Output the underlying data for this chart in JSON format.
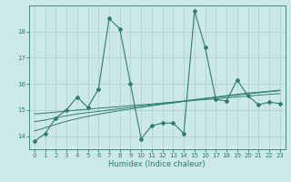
{
  "xlabel": "Humidex (Indice chaleur)",
  "x": [
    0,
    1,
    2,
    3,
    4,
    5,
    6,
    7,
    8,
    9,
    10,
    11,
    12,
    13,
    14,
    15,
    16,
    17,
    18,
    19,
    20,
    21,
    22,
    23
  ],
  "y_main": [
    13.8,
    14.1,
    14.7,
    15.0,
    15.5,
    15.1,
    15.8,
    18.5,
    18.1,
    16.0,
    13.9,
    14.4,
    14.5,
    14.5,
    14.1,
    18.8,
    17.4,
    15.4,
    15.35,
    16.15,
    15.55,
    15.2,
    15.3,
    15.25
  ],
  "y_trend1": [
    14.85,
    14.88,
    14.92,
    14.96,
    15.0,
    15.03,
    15.07,
    15.1,
    15.13,
    15.17,
    15.2,
    15.23,
    15.27,
    15.3,
    15.33,
    15.37,
    15.4,
    15.43,
    15.47,
    15.5,
    15.53,
    15.57,
    15.6,
    15.63
  ],
  "y_trend2": [
    14.55,
    14.62,
    14.7,
    14.78,
    14.85,
    14.9,
    14.95,
    15.0,
    15.05,
    15.1,
    15.15,
    15.2,
    15.25,
    15.3,
    15.35,
    15.4,
    15.45,
    15.5,
    15.55,
    15.6,
    15.65,
    15.68,
    15.72,
    15.76
  ],
  "y_trend3": [
    14.2,
    14.32,
    14.45,
    14.57,
    14.67,
    14.76,
    14.84,
    14.91,
    14.98,
    15.04,
    15.1,
    15.16,
    15.22,
    15.27,
    15.33,
    15.38,
    15.43,
    15.48,
    15.53,
    15.57,
    15.62,
    15.66,
    15.7,
    15.74
  ],
  "ylim": [
    13.5,
    19.0
  ],
  "xlim": [
    -0.5,
    23.5
  ],
  "yticks": [
    14,
    15,
    16,
    17,
    18
  ],
  "xticks": [
    0,
    1,
    2,
    3,
    4,
    5,
    6,
    7,
    8,
    9,
    10,
    11,
    12,
    13,
    14,
    15,
    16,
    17,
    18,
    19,
    20,
    21,
    22,
    23
  ],
  "line_color": "#2e7d6e",
  "bg_color": "#cce8e8",
  "grid_color": "#aacece"
}
